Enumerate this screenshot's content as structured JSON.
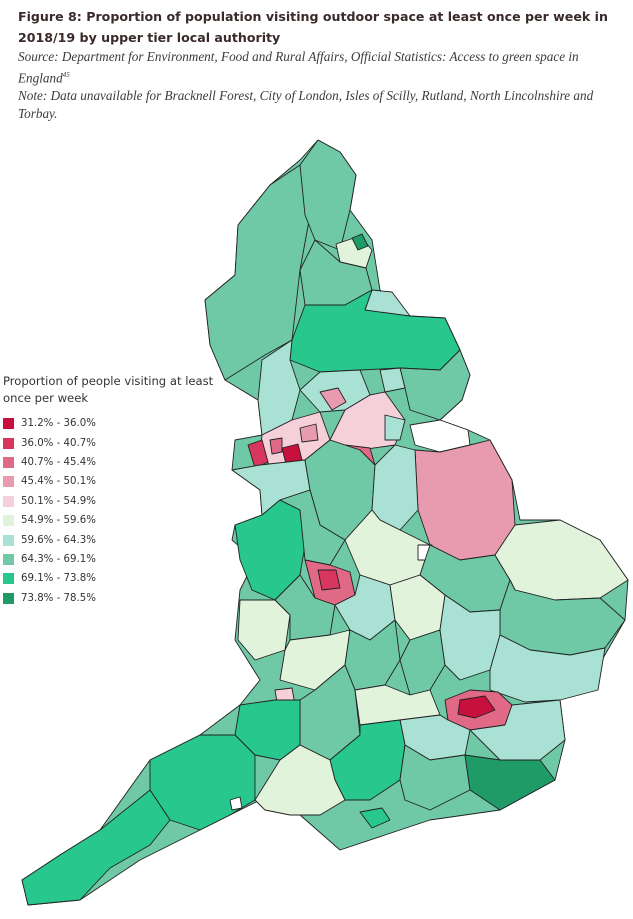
{
  "figure": {
    "title": "Figure 8: Proportion of population visiting outdoor space at least once per week in 2018/19 by upper tier local authority",
    "source": "Source: Department for Environment, Food and Rural Affairs, Official Statistics: Access to green space in England",
    "source_ref": "45",
    "note": "Note: Data unavailable for Bracknell Forest, City of London, Isles of Scilly, Rutland, North Lincolnshire and Torbay."
  },
  "legend": {
    "title": "Proportion of people visiting at least once per week",
    "classes": [
      {
        "label": "31.2% - 36.0%",
        "color": "#c8103e"
      },
      {
        "label": "36.0% - 40.7%",
        "color": "#d8365e"
      },
      {
        "label": "40.7% - 45.4%",
        "color": "#e06a86"
      },
      {
        "label": "45.4% - 50.1%",
        "color": "#e89aae"
      },
      {
        "label": "50.1% - 54.9%",
        "color": "#f5d0db"
      },
      {
        "label": "54.9% - 59.6%",
        "color": "#e2f3dc"
      },
      {
        "label": "59.6% - 64.3%",
        "color": "#a9e2d4"
      },
      {
        "label": "64.3% - 69.1%",
        "color": "#6fc9a6"
      },
      {
        "label": "69.1% - 73.8%",
        "color": "#27c78e"
      },
      {
        "label": "73.8% - 78.5%",
        "color": "#1e9b66"
      }
    ]
  },
  "map": {
    "region": "England",
    "no_data_color": "#ffffff",
    "border_color": "#222222"
  }
}
